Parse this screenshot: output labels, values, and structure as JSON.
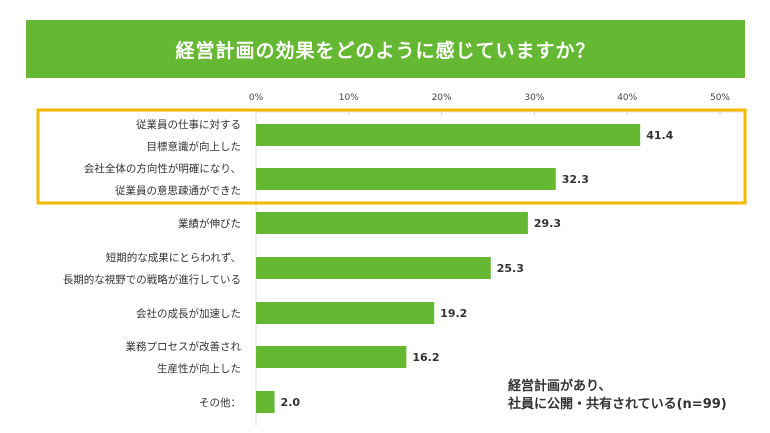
{
  "chart_data": {
    "type": "bar",
    "orientation": "horizontal",
    "title": "経営計画の効果をどのように感じていますか？",
    "categories": [
      [
        "従業員の仕事に対する",
        "目標意識が向上した"
      ],
      [
        "会社全体の方向性が明確になり、",
        "従業員の意思疎通ができた"
      ],
      [
        "業績が伸びた"
      ],
      [
        "短期的な成果にとらわれず、",
        "長期的な視野での戦略が進行している"
      ],
      [
        "会社の成長が加速した"
      ],
      [
        "業務プロセスが改善され",
        "生産性が向上した"
      ],
      [
        "その他："
      ]
    ],
    "values": [
      41.4,
      32.3,
      29.3,
      25.3,
      19.2,
      16.2,
      2.0
    ],
    "value_labels": [
      "41.4",
      "32.3",
      "29.3",
      "25.3",
      "19.2",
      "16.2",
      "2.0"
    ],
    "xlim": [
      0,
      50
    ],
    "ticks": [
      "0%",
      "10%",
      "20%",
      "30%",
      "40%",
      "50%"
    ],
    "tick_values": [
      0,
      10,
      20,
      30,
      40,
      50
    ],
    "highlighted_categories": [
      0,
      1
    ],
    "note": [
      "経営計画があり、",
      "社員に公開・共有されている(n=99)"
    ],
    "colors": {
      "bar": "#65b832",
      "header": "#65b832",
      "highlight": "#f5b800"
    }
  }
}
